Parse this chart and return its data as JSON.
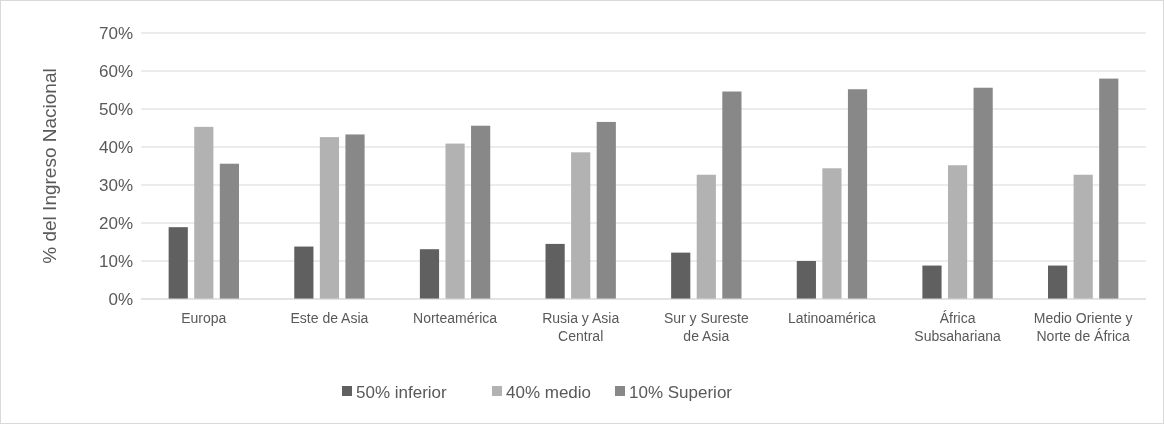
{
  "chart_data": {
    "type": "bar",
    "ylabel": "% del Ingreso Nacional",
    "categories": [
      "Europa",
      "Este de Asia",
      "Norteamérica",
      "Rusia y Asia Central",
      "Sur y Sureste de Asia",
      "Latinoamérica",
      "África Subsahariana",
      "Medio Oriente y Norte de África"
    ],
    "series": [
      {
        "name": "50% inferior",
        "color": "#606060",
        "values": [
          18.9,
          13.8,
          13.1,
          14.5,
          12.2,
          10.0,
          8.8,
          8.8
        ]
      },
      {
        "name": "40% medio",
        "color": "#b2b2b2",
        "values": [
          45.3,
          42.6,
          40.9,
          38.6,
          32.7,
          34.4,
          35.2,
          32.7
        ]
      },
      {
        "name": "10% Superior",
        "color": "#888888",
        "values": [
          35.6,
          43.3,
          45.6,
          46.6,
          54.6,
          55.2,
          55.6,
          58.0
        ]
      }
    ],
    "ylim": [
      0,
      70
    ],
    "yticks": [
      {
        "value": 0,
        "label": "0%"
      },
      {
        "value": 10,
        "label": "10%"
      },
      {
        "value": 20,
        "label": "20%"
      },
      {
        "value": 30,
        "label": "30%"
      },
      {
        "value": 40,
        "label": "40%"
      },
      {
        "value": 50,
        "label": "50%"
      },
      {
        "value": 60,
        "label": "60%"
      },
      {
        "value": 70,
        "label": "70%"
      }
    ],
    "grid": "y",
    "legend": "bottom"
  }
}
